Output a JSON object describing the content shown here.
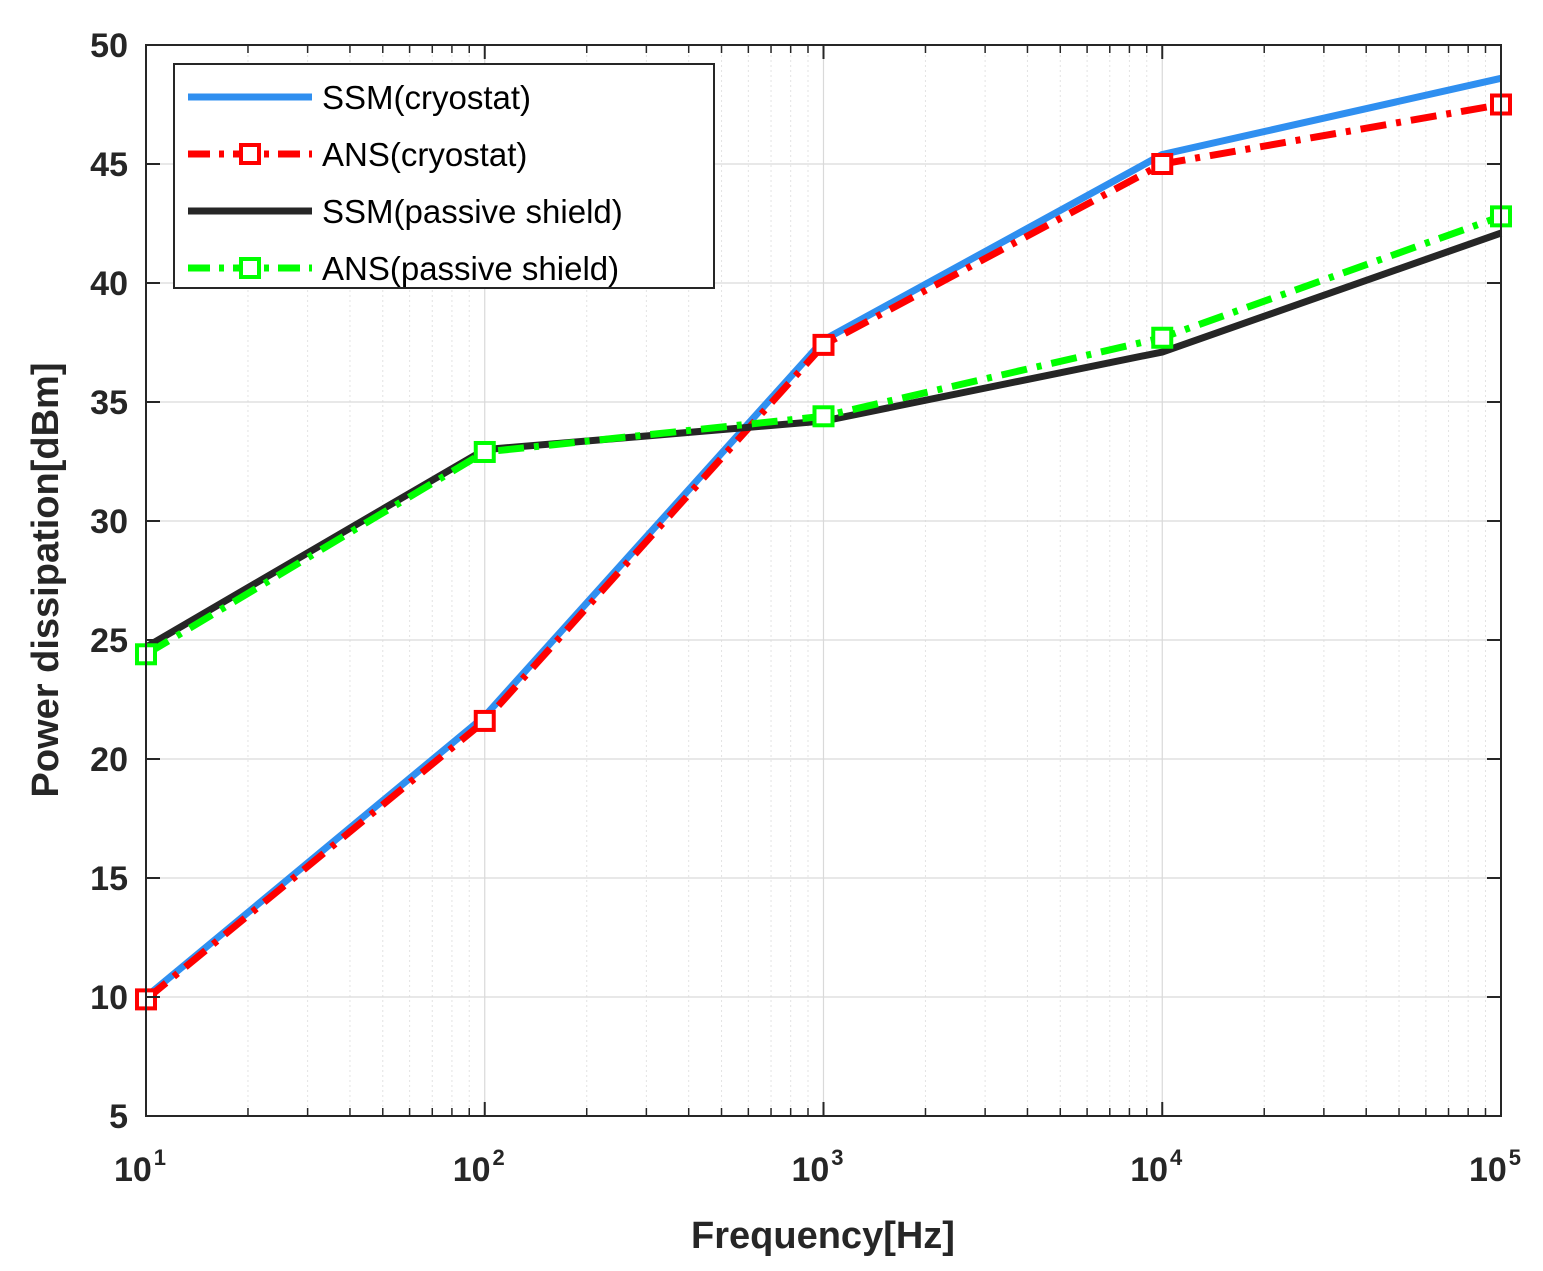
{
  "chart_data": {
    "type": "line",
    "title": "",
    "xlabel": "Frequency[Hz]",
    "ylabel": "Power dissipation[dBm]",
    "xscale": "log",
    "xlim": [
      10,
      100000
    ],
    "ylim": [
      5,
      50
    ],
    "grid": true,
    "legend_position": "top-left",
    "x": [
      10,
      100,
      1000,
      10000,
      100000
    ],
    "x_ticks": [
      {
        "base": "10",
        "exp": "1"
      },
      {
        "base": "10",
        "exp": "2"
      },
      {
        "base": "10",
        "exp": "3"
      },
      {
        "base": "10",
        "exp": "4"
      },
      {
        "base": "10",
        "exp": "5"
      }
    ],
    "y_ticks": [
      "5",
      "10",
      "15",
      "20",
      "25",
      "30",
      "35",
      "40",
      "45",
      "50"
    ],
    "series": [
      {
        "name": "SSM(cryostat)",
        "values": [
          10.0,
          21.8,
          37.6,
          45.4,
          48.6
        ],
        "color": "#2f8ff0",
        "style": "solid",
        "marker": "none"
      },
      {
        "name": "ANS(cryostat)",
        "values": [
          9.9,
          21.6,
          37.4,
          45.0,
          47.5
        ],
        "color": "#ff0000",
        "style": "dashdot",
        "marker": "square"
      },
      {
        "name": "SSM(passive shield)",
        "values": [
          24.7,
          33.0,
          34.2,
          37.1,
          42.1
        ],
        "color": "#262626",
        "style": "solid",
        "marker": "none"
      },
      {
        "name": "ANS(passive shield)",
        "values": [
          24.4,
          32.9,
          34.4,
          37.7,
          42.8
        ],
        "color": "#00ff00",
        "style": "dashdot",
        "marker": "square"
      }
    ]
  }
}
